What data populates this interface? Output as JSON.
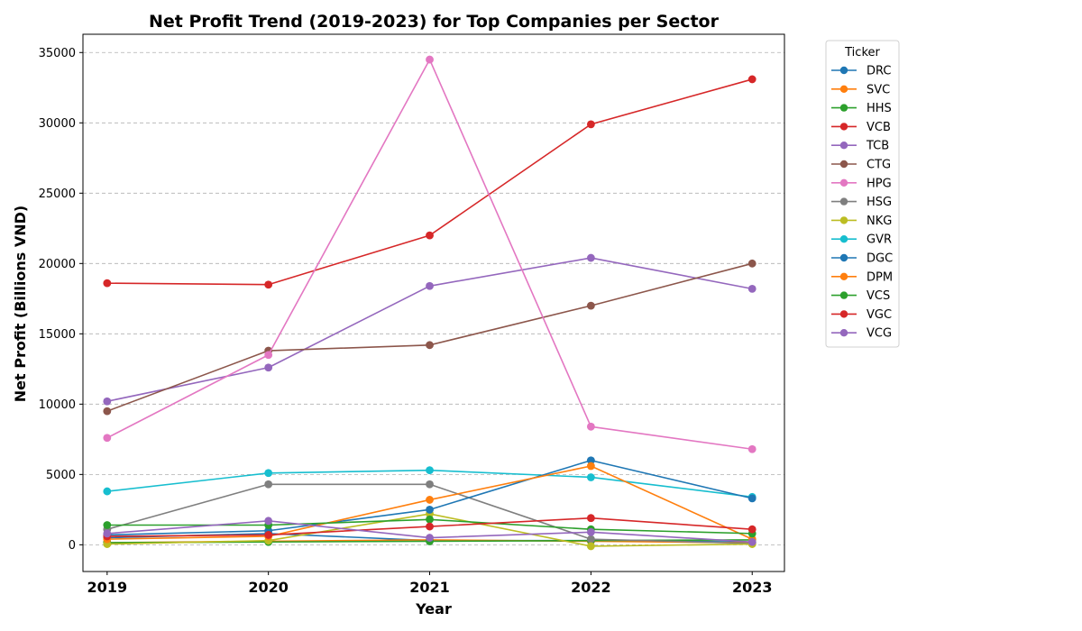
{
  "chart_data": {
    "type": "line",
    "title": "Net Profit Trend (2019-2023) for Top Companies per Sector",
    "xlabel": "Year",
    "ylabel": "Net Profit (Billions VND)",
    "x": [
      2019,
      2020,
      2021,
      2022,
      2023
    ],
    "x_tick_labels": [
      "2019",
      "2020",
      "2021",
      "2022",
      "2023"
    ],
    "y_ticks": [
      0,
      5000,
      10000,
      15000,
      20000,
      25000,
      30000,
      35000
    ],
    "y_tick_labels": [
      "0",
      "5000",
      "10000",
      "15000",
      "20000",
      "25000",
      "30000",
      "35000"
    ],
    "ylim": [
      -1900,
      36300
    ],
    "xlim": [
      2018.85,
      2023.2
    ],
    "grid": "horizontal dashed",
    "legend": {
      "title": "Ticker",
      "placement": "outside right"
    },
    "series": [
      {
        "name": "DRC",
        "color": "#1f77b4",
        "values": [
          500,
          800,
          300,
          300,
          200
        ]
      },
      {
        "name": "SVC",
        "color": "#ff7f0e",
        "values": [
          150,
          250,
          350,
          250,
          150
        ]
      },
      {
        "name": "HHS",
        "color": "#2ca02c",
        "values": [
          150,
          200,
          250,
          300,
          350
        ]
      },
      {
        "name": "VCB",
        "color": "#d62728",
        "values": [
          18600,
          18500,
          22000,
          29900,
          33100
        ]
      },
      {
        "name": "TCB",
        "color": "#9467bd",
        "values": [
          10200,
          12600,
          18400,
          20400,
          18200
        ]
      },
      {
        "name": "CTG",
        "color": "#8c564b",
        "values": [
          9500,
          13800,
          14200,
          17000,
          20000
        ]
      },
      {
        "name": "HPG",
        "color": "#e377c2",
        "values": [
          7600,
          13500,
          34500,
          8400,
          6800
        ]
      },
      {
        "name": "HSG",
        "color": "#7f7f7f",
        "values": [
          1100,
          4300,
          4300,
          400,
          100
        ]
      },
      {
        "name": "NKG",
        "color": "#bcbd22",
        "values": [
          50,
          300,
          2200,
          -100,
          50
        ]
      },
      {
        "name": "GVR",
        "color": "#17becf",
        "values": [
          3800,
          5100,
          5300,
          4800,
          3400
        ]
      },
      {
        "name": "DGC",
        "color": "#1f77b4",
        "values": [
          700,
          1000,
          2500,
          6000,
          3300
        ]
      },
      {
        "name": "DPM",
        "color": "#ff7f0e",
        "values": [
          400,
          600,
          3200,
          5600,
          400
        ]
      },
      {
        "name": "VCS",
        "color": "#2ca02c",
        "values": [
          1400,
          1400,
          1800,
          1100,
          800
        ]
      },
      {
        "name": "VGC",
        "color": "#d62728",
        "values": [
          600,
          700,
          1300,
          1900,
          1100
        ]
      },
      {
        "name": "VCG",
        "color": "#9467bd",
        "values": [
          800,
          1700,
          500,
          900,
          200
        ]
      }
    ]
  }
}
